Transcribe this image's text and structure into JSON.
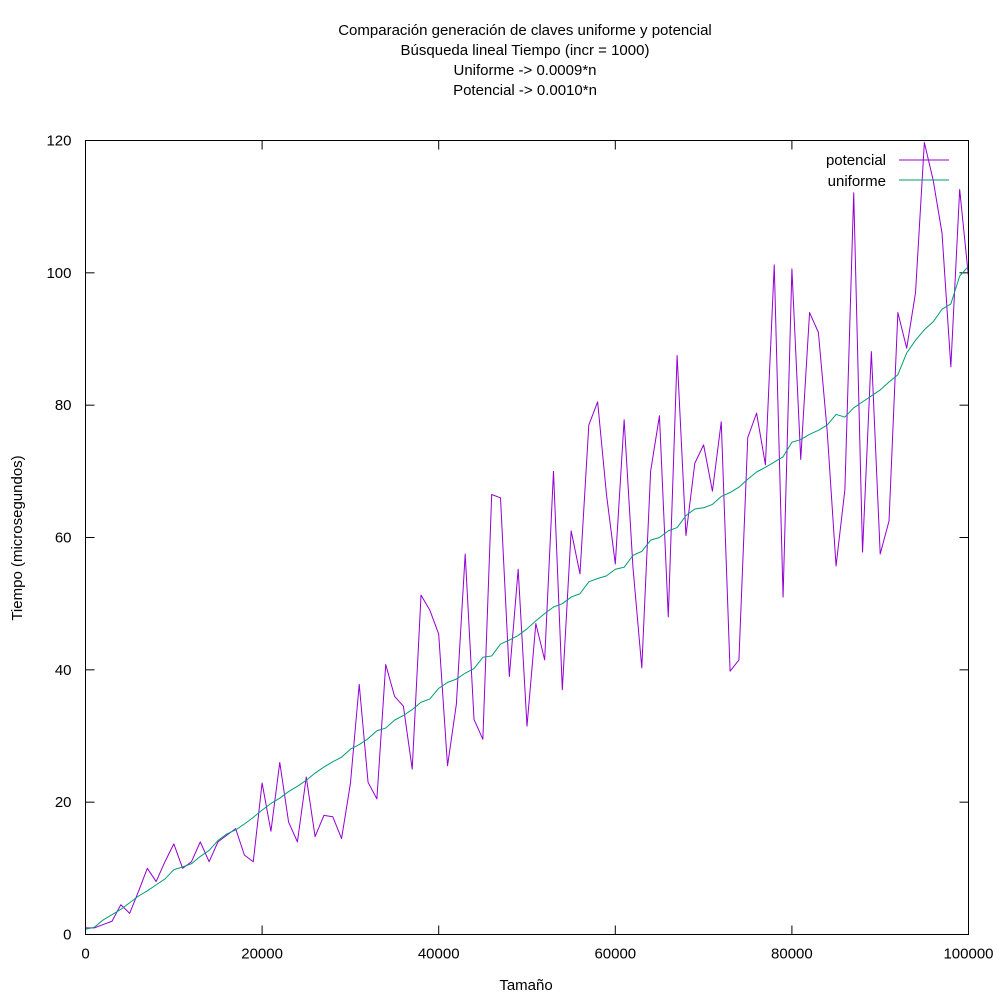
{
  "chart_data": {
    "type": "line",
    "title": [
      "Comparación generación de claves uniforme y potencial",
      "Búsqueda lineal Tiempo (incr = 1000)",
      "Uniforme -> 0.0009*n",
      "Potencial -> 0.0010*n"
    ],
    "xlabel": "Tamaño",
    "ylabel": "Tiempo (microsegundos)",
    "xlim": [
      0,
      100000
    ],
    "ylim": [
      0,
      120
    ],
    "xticks": [
      "0",
      "20000",
      "40000",
      "60000",
      "80000",
      "100000"
    ],
    "yticks": [
      "0",
      "20",
      "40",
      "60",
      "80",
      "100",
      "120"
    ],
    "grid": false,
    "legend_position": "top-right",
    "series": [
      {
        "name": "potencial",
        "color": "#9400d3",
        "x": [
          0,
          1000,
          2000,
          3000,
          4000,
          5000,
          6000,
          7000,
          8000,
          9000,
          10000,
          11000,
          12000,
          13000,
          14000,
          15000,
          16000,
          17000,
          18000,
          19000,
          20000,
          21000,
          22000,
          23000,
          24000,
          25000,
          26000,
          27000,
          28000,
          29000,
          30000,
          31000,
          32000,
          33000,
          34000,
          35000,
          36000,
          37000,
          38000,
          39000,
          40000,
          41000,
          42000,
          43000,
          44000,
          45000,
          46000,
          47000,
          48000,
          49000,
          50000,
          51000,
          52000,
          53000,
          54000,
          55000,
          56000,
          57000,
          58000,
          59000,
          60000,
          61000,
          62000,
          63000,
          64000,
          65000,
          66000,
          67000,
          68000,
          69000,
          70000,
          71000,
          72000,
          73000,
          74000,
          75000,
          76000,
          77000,
          78000,
          79000,
          80000,
          81000,
          82000,
          83000,
          84000,
          85000,
          86000,
          87000,
          88000,
          89000,
          90000,
          91000,
          92000,
          93000,
          94000,
          95000,
          96000,
          97000,
          98000,
          99000,
          100000
        ],
        "y": [
          1,
          1,
          1.5,
          2,
          4.5,
          3.2,
          6.5,
          10,
          8,
          11,
          13.7,
          10,
          11,
          14,
          11,
          14,
          15,
          16,
          12,
          11,
          22.9,
          15.6,
          26,
          17,
          14,
          23.8,
          14.8,
          18,
          17.8,
          14.5,
          22.8,
          37.8,
          23,
          20.5,
          40.8,
          36,
          34.5,
          25,
          51.3,
          49,
          45.4,
          25.5,
          34.8,
          57.5,
          32.5,
          29.5,
          66.5,
          66,
          39,
          55.2,
          31.5,
          47,
          41.5,
          70,
          37,
          61,
          54.5,
          77,
          80.5,
          66.5,
          56,
          77.8,
          55.5,
          40.3,
          70,
          78.4,
          48,
          87.5,
          60.3,
          71.2,
          74,
          67,
          77.5,
          39.8,
          41.5,
          75.1,
          78.8,
          71,
          101.2,
          51,
          100.6,
          71.8,
          94,
          91,
          76,
          55.7,
          67.2,
          112.1,
          57.8,
          88.1,
          57.5,
          62.5,
          94,
          88.6,
          97,
          119.7,
          114,
          106,
          85.8,
          112.6,
          99.4
        ]
      },
      {
        "name": "uniforme",
        "color": "#009e73",
        "x": [
          0,
          1000,
          2000,
          3000,
          4000,
          5000,
          6000,
          7000,
          8000,
          9000,
          10000,
          11000,
          12000,
          13000,
          14000,
          15000,
          16000,
          17000,
          18000,
          19000,
          20000,
          21000,
          22000,
          23000,
          24000,
          25000,
          26000,
          27000,
          28000,
          29000,
          30000,
          31000,
          32000,
          33000,
          34000,
          35000,
          36000,
          37000,
          38000,
          39000,
          40000,
          41000,
          42000,
          43000,
          44000,
          45000,
          46000,
          47000,
          48000,
          49000,
          50000,
          51000,
          52000,
          53000,
          54000,
          55000,
          56000,
          57000,
          58000,
          59000,
          60000,
          61000,
          62000,
          63000,
          64000,
          65000,
          66000,
          67000,
          68000,
          69000,
          70000,
          71000,
          72000,
          73000,
          74000,
          75000,
          76000,
          77000,
          78000,
          79000,
          80000,
          81000,
          82000,
          83000,
          84000,
          85000,
          86000,
          87000,
          88000,
          89000,
          90000,
          91000,
          92000,
          93000,
          94000,
          95000,
          96000,
          97000,
          98000,
          99000,
          100000
        ],
        "y": [
          0.8,
          1.1,
          2.2,
          3,
          3.8,
          4.8,
          5.8,
          6.6,
          7.5,
          8.4,
          9.8,
          10.2,
          10.7,
          11.8,
          12.7,
          14.2,
          15.2,
          15.8,
          16.7,
          17.7,
          18.8,
          19.8,
          20.6,
          21.6,
          22.4,
          23.3,
          24.4,
          25.3,
          26.1,
          26.8,
          28,
          28.7,
          29.6,
          30.8,
          31.2,
          32.4,
          33.1,
          34,
          35.1,
          35.6,
          37.2,
          38.1,
          38.6,
          39.5,
          40.2,
          41.9,
          42.1,
          43.9,
          44.5,
          45.2,
          46.2,
          47.4,
          48.5,
          49.5,
          50,
          51,
          51.5,
          53.3,
          53.8,
          54.2,
          55.2,
          55.5,
          57.3,
          57.9,
          59.6,
          60,
          61,
          61.5,
          63.3,
          64.3,
          64.5,
          65,
          66.2,
          66.8,
          67.6,
          68.8,
          69.9,
          70.6,
          71.4,
          72.2,
          74.4,
          74.8,
          75.6,
          76.2,
          77,
          78.6,
          78.2,
          79.6,
          80.5,
          81.4,
          82.3,
          83.5,
          84.6,
          87.9,
          89.8,
          91.4,
          92.6,
          94.5,
          95.3,
          99.5,
          101
        ]
      }
    ]
  }
}
